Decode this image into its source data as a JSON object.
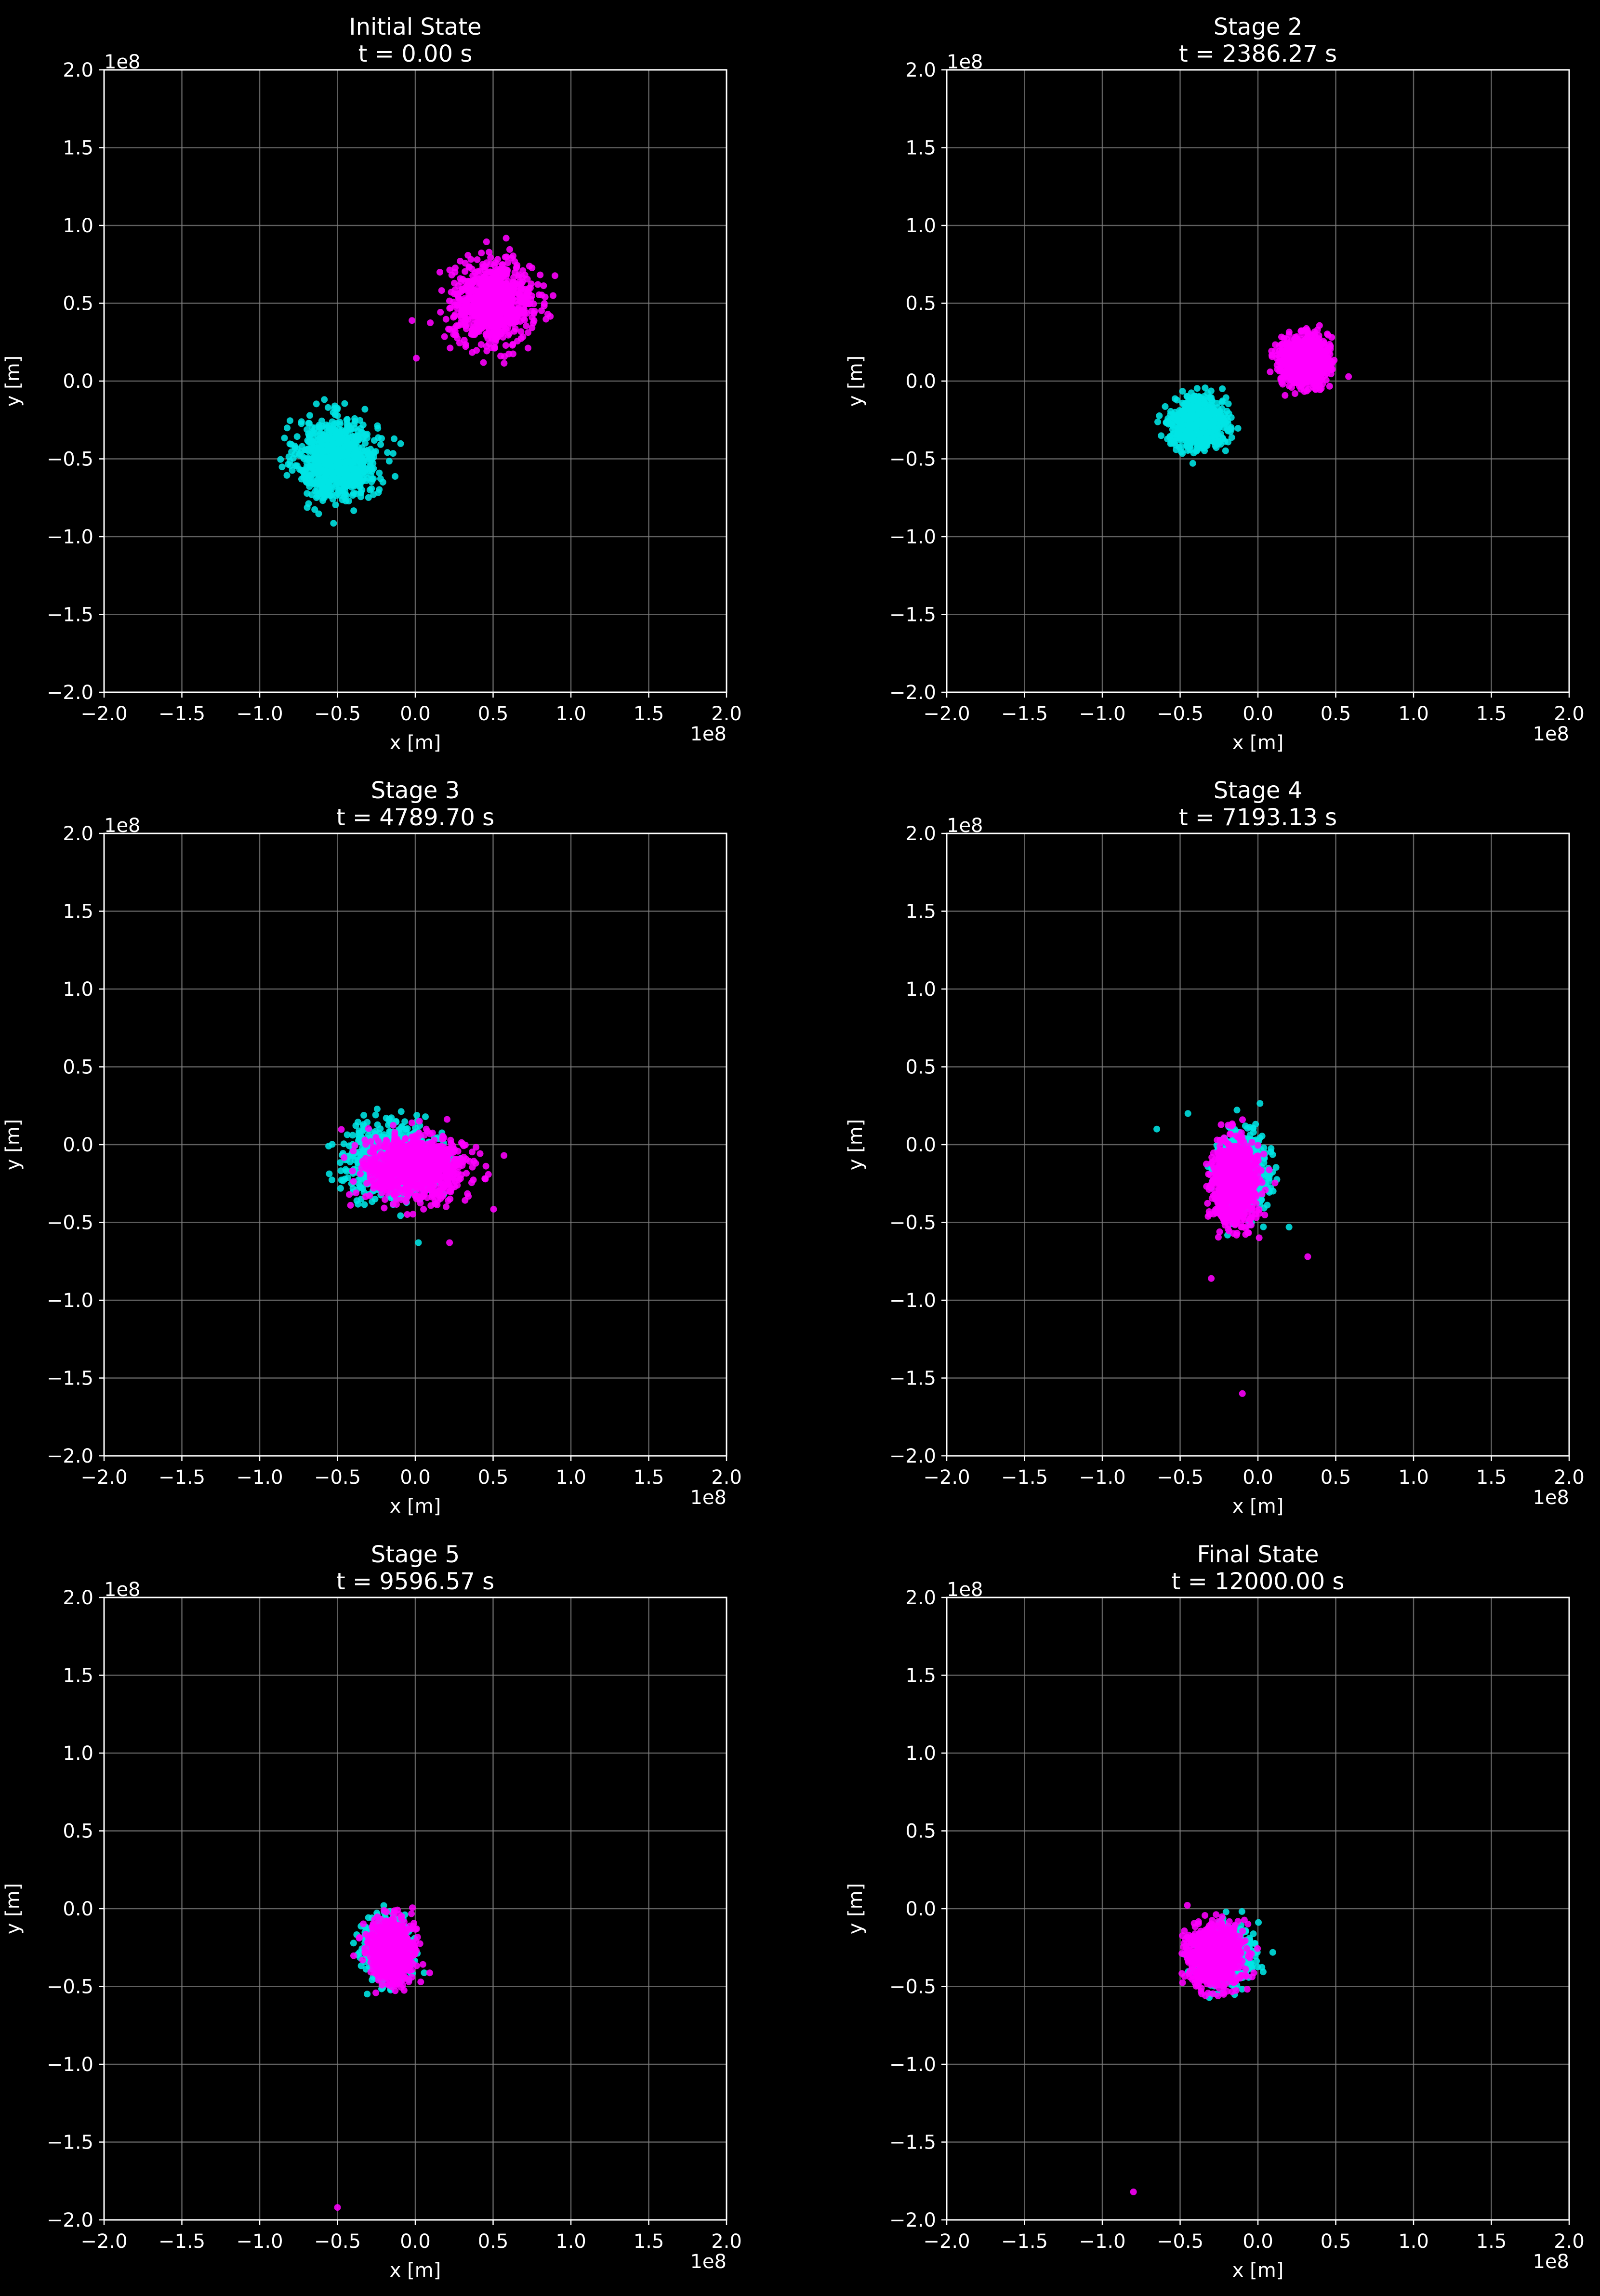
{
  "figure": {
    "background": "#000000",
    "foreground": "#ffffff",
    "grid_color": "#808080"
  },
  "chart_data": [
    {
      "type": "scatter",
      "title": "Initial State",
      "subtitle": "t = 0.00 s",
      "xlabel": "x [m]",
      "ylabel": "y [m]",
      "offset_label": "1e8",
      "xlim": [
        -2.0,
        2.0
      ],
      "ylim": [
        -2.0,
        2.0
      ],
      "xticks": [
        "−2.0",
        "−1.5",
        "−1.0",
        "−0.5",
        "0.0",
        "0.5",
        "1.0",
        "1.5",
        "2.0"
      ],
      "yticks": [
        "−2.0",
        "−1.5",
        "−1.0",
        "−0.5",
        "0.0",
        "0.5",
        "1.0",
        "1.5",
        "2.0"
      ],
      "grid": true,
      "series": [
        {
          "color": "#00e5e5",
          "cloud": {
            "center": [
              -0.5,
              -0.5
            ],
            "spread": [
              0.3,
              0.3
            ],
            "count": 900
          },
          "outliers": []
        },
        {
          "color": "#ff00ff",
          "cloud": {
            "center": [
              0.5,
              0.5
            ],
            "spread": [
              0.3,
              0.3
            ],
            "count": 900
          },
          "outliers": []
        }
      ]
    },
    {
      "type": "scatter",
      "title": "Stage 2",
      "subtitle": "t = 2386.27 s",
      "xlabel": "x [m]",
      "ylabel": "y [m]",
      "offset_label": "1e8",
      "xlim": [
        -2.0,
        2.0
      ],
      "ylim": [
        -2.0,
        2.0
      ],
      "xticks": [
        "−2.0",
        "−1.5",
        "−1.0",
        "−0.5",
        "0.0",
        "0.5",
        "1.0",
        "1.5",
        "2.0"
      ],
      "yticks": [
        "−2.0",
        "−1.5",
        "−1.0",
        "−0.5",
        "0.0",
        "0.5",
        "1.0",
        "1.5",
        "2.0"
      ],
      "grid": true,
      "series": [
        {
          "color": "#00e5e5",
          "cloud": {
            "center": [
              -0.38,
              -0.27
            ],
            "spread": [
              0.19,
              0.19
            ],
            "count": 900
          },
          "outliers": []
        },
        {
          "color": "#ff00ff",
          "cloud": {
            "center": [
              0.3,
              0.13
            ],
            "spread": [
              0.18,
              0.18
            ],
            "count": 900
          },
          "outliers": []
        }
      ]
    },
    {
      "type": "scatter",
      "title": "Stage 3",
      "subtitle": "t = 4789.70 s",
      "xlabel": "x [m]",
      "ylabel": "y [m]",
      "offset_label": "1e8",
      "xlim": [
        -2.0,
        2.0
      ],
      "ylim": [
        -2.0,
        2.0
      ],
      "xticks": [
        "−2.0",
        "−1.5",
        "−1.0",
        "−0.5",
        "0.0",
        "0.5",
        "1.0",
        "1.5",
        "2.0"
      ],
      "yticks": [
        "−2.0",
        "−1.5",
        "−1.0",
        "−0.5",
        "0.0",
        "0.5",
        "1.0",
        "1.5",
        "2.0"
      ],
      "grid": true,
      "series": [
        {
          "color": "#00e5e5",
          "cloud": {
            "center": [
              -0.15,
              -0.1
            ],
            "spread": [
              0.34,
              0.25
            ],
            "count": 900
          },
          "outliers": [
            [
              0.02,
              -0.63
            ]
          ]
        },
        {
          "color": "#ff00ff",
          "cloud": {
            "center": [
              0.0,
              -0.15
            ],
            "spread": [
              0.38,
              0.24
            ],
            "count": 900
          },
          "outliers": [
            [
              0.22,
              -0.63
            ],
            [
              0.57,
              -0.07
            ]
          ]
        }
      ]
    },
    {
      "type": "scatter",
      "title": "Stage 4",
      "subtitle": "t = 7193.13 s",
      "xlabel": "x [m]",
      "ylabel": "y [m]",
      "offset_label": "1e8",
      "xlim": [
        -2.0,
        2.0
      ],
      "ylim": [
        -2.0,
        2.0
      ],
      "xticks": [
        "−2.0",
        "−1.5",
        "−1.0",
        "−0.5",
        "0.0",
        "0.5",
        "1.0",
        "1.5",
        "2.0"
      ],
      "yticks": [
        "−2.0",
        "−1.5",
        "−1.0",
        "−0.5",
        "0.0",
        "0.5",
        "1.0",
        "1.5",
        "2.0"
      ],
      "grid": true,
      "series": [
        {
          "color": "#00e5e5",
          "cloud": {
            "center": [
              -0.1,
              -0.18
            ],
            "spread": [
              0.18,
              0.3
            ],
            "count": 700
          },
          "outliers": [
            [
              -0.65,
              0.1
            ],
            [
              -0.45,
              0.2
            ],
            [
              0.2,
              -0.53
            ]
          ]
        },
        {
          "color": "#ff00ff",
          "cloud": {
            "center": [
              -0.15,
              -0.25
            ],
            "spread": [
              0.17,
              0.3
            ],
            "count": 900
          },
          "outliers": [
            [
              -0.3,
              -0.86
            ],
            [
              0.32,
              -0.72
            ],
            [
              -0.1,
              -1.6
            ]
          ]
        }
      ]
    },
    {
      "type": "scatter",
      "title": "Stage 5",
      "subtitle": "t = 9596.57 s",
      "xlabel": "x [m]",
      "ylabel": "y [m]",
      "offset_label": "1e8",
      "xlim": [
        -2.0,
        2.0
      ],
      "ylim": [
        -2.0,
        2.0
      ],
      "xticks": [
        "−2.0",
        "−1.5",
        "−1.0",
        "−0.5",
        "0.0",
        "0.5",
        "1.0",
        "1.5",
        "2.0"
      ],
      "yticks": [
        "−2.0",
        "−1.5",
        "−1.0",
        "−0.5",
        "0.0",
        "0.5",
        "1.0",
        "1.5",
        "2.0"
      ],
      "grid": true,
      "series": [
        {
          "color": "#00e5e5",
          "cloud": {
            "center": [
              -0.18,
              -0.25
            ],
            "spread": [
              0.17,
              0.22
            ],
            "count": 700
          },
          "outliers": []
        },
        {
          "color": "#ff00ff",
          "cloud": {
            "center": [
              -0.16,
              -0.27
            ],
            "spread": [
              0.16,
              0.22
            ],
            "count": 900
          },
          "outliers": [
            [
              -0.5,
              -1.92
            ]
          ]
        }
      ]
    },
    {
      "type": "scatter",
      "title": "Final State",
      "subtitle": "t = 12000.00 s",
      "xlabel": "x [m]",
      "ylabel": "y [m]",
      "offset_label": "1e8",
      "xlim": [
        -2.0,
        2.0
      ],
      "ylim": [
        -2.0,
        2.0
      ],
      "xticks": [
        "−2.0",
        "−1.5",
        "−1.0",
        "−0.5",
        "0.0",
        "0.5",
        "1.0",
        "1.5",
        "2.0"
      ],
      "yticks": [
        "−2.0",
        "−1.5",
        "−1.0",
        "−0.5",
        "0.0",
        "0.5",
        "1.0",
        "1.5",
        "2.0"
      ],
      "grid": true,
      "series": [
        {
          "color": "#00e5e5",
          "cloud": {
            "center": [
              -0.22,
              -0.3
            ],
            "spread": [
              0.2,
              0.22
            ],
            "count": 700
          },
          "outliers": []
        },
        {
          "color": "#ff00ff",
          "cloud": {
            "center": [
              -0.28,
              -0.3
            ],
            "spread": [
              0.2,
              0.22
            ],
            "count": 900
          },
          "outliers": [
            [
              -0.8,
              -1.82
            ]
          ]
        }
      ]
    }
  ]
}
